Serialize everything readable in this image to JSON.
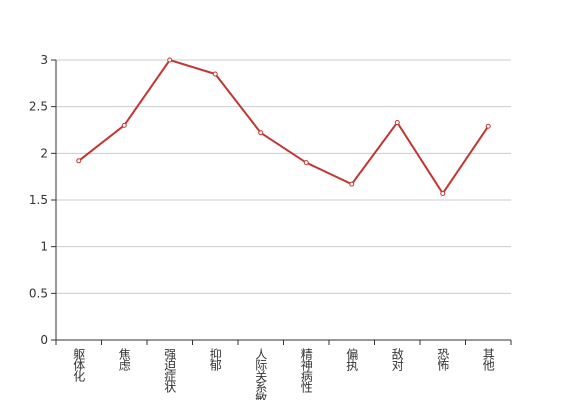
{
  "chart_data": {
    "type": "line",
    "categories": [
      "躯体化",
      "焦虑",
      "强迫症状",
      "抑郁",
      "人际关系敏感",
      "精神病性",
      "偏执",
      "敌对",
      "恐怖",
      "其他"
    ],
    "series": [
      {
        "color": "#c23531",
        "values": [
          1.92,
          2.3,
          3.0,
          2.85,
          2.22,
          1.9,
          1.67,
          2.33,
          1.57,
          2.29
        ]
      }
    ],
    "ylim": [
      0,
      3
    ],
    "yticks": [
      0,
      0.5,
      1,
      1.5,
      2,
      2.5,
      3
    ],
    "grid": true
  }
}
